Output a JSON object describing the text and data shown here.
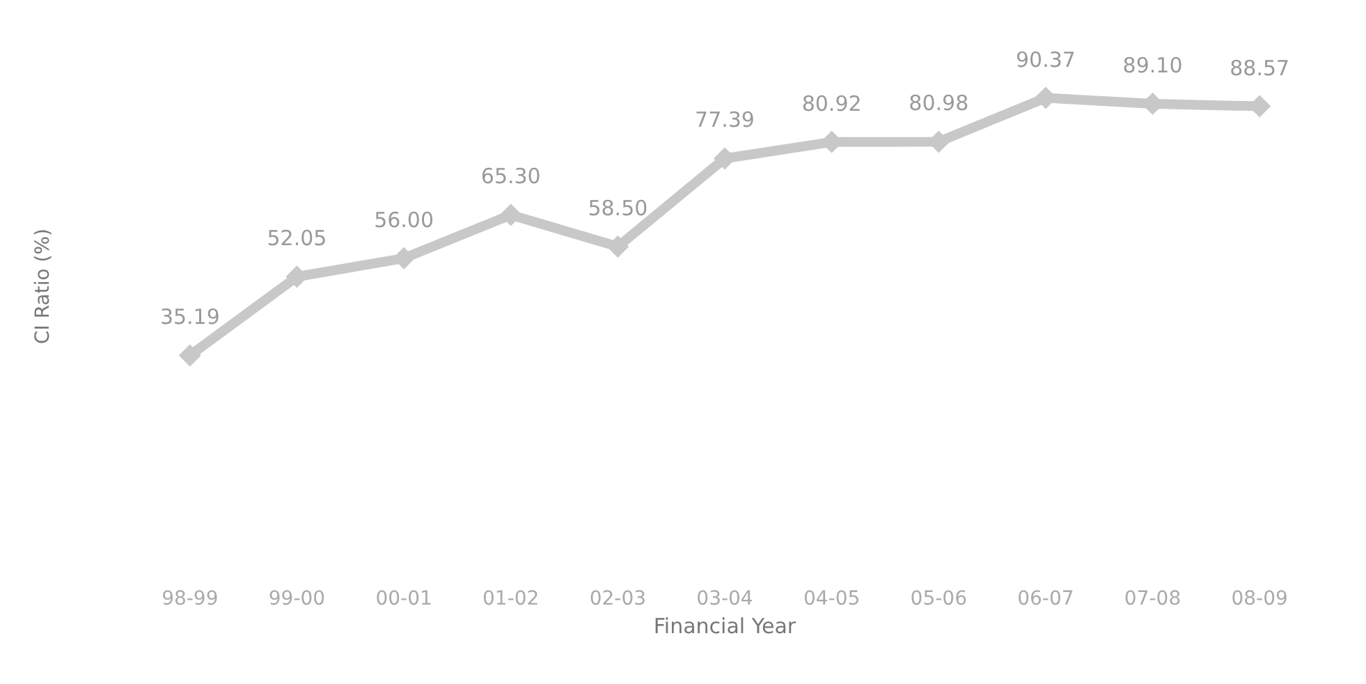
{
  "chart_data": {
    "type": "line",
    "xlabel": "Financial Year",
    "ylabel": "CI Ratio (%)",
    "categories": [
      "98-99",
      "99-00",
      "00-01",
      "01-02",
      "02-03",
      "03-04",
      "04-05",
      "05-06",
      "06-07",
      "07-08",
      "08-09"
    ],
    "series": [
      {
        "color": "#c8c8c8",
        "values": [
          35.19,
          52.05,
          56.0,
          65.3,
          58.5,
          77.39,
          80.92,
          80.98,
          90.37,
          89.1,
          88.57
        ],
        "value_labels": [
          "35.19",
          "52.05",
          "56.00",
          "65.30",
          "58.50",
          "77.39",
          "80.92",
          "80.98",
          "90.37",
          "89.10",
          "88.57"
        ]
      }
    ],
    "tick_labels": "x",
    "marker": "diamond"
  }
}
